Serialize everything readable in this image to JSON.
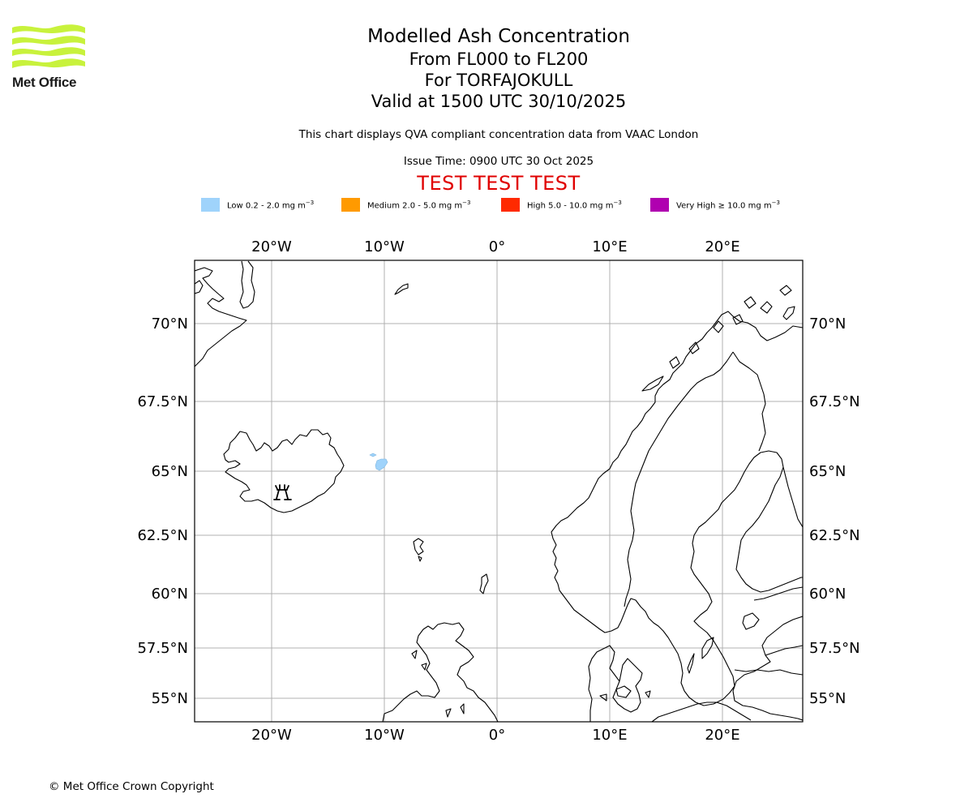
{
  "header": {
    "logo_alt": "Met Office",
    "logo_text": "Met Office",
    "title": "Modelled Ash Concentration",
    "flight_levels": "From FL000 to FL200",
    "volcano": "For TORFAJOKULL",
    "valid_time": "Valid at 1500 UTC 30/10/2025",
    "description": "This chart displays QVA compliant concentration data from VAAC London",
    "issue_time": "Issue Time: 0900 UTC 30 Oct 2025",
    "test_banner": "TEST TEST TEST"
  },
  "legend": [
    {
      "label": "Low 0.2 - 2.0 mg m",
      "sup": "−3",
      "color": "#9fd3fb"
    },
    {
      "label": "Medium 2.0 - 5.0 mg m",
      "sup": "−3",
      "color": "#ff9a00"
    },
    {
      "label": "High 5.0 - 10.0 mg m",
      "sup": "−3",
      "color": "#ff2a00"
    },
    {
      "label": "Very High ≥ 10.0 mg m",
      "sup": "−3",
      "color": "#b000b0"
    }
  ],
  "map": {
    "lon_labels": [
      "20°W",
      "10°W",
      "0°",
      "10°E",
      "20°E"
    ],
    "lat_labels": [
      "70°N",
      "67.5°N",
      "65°N",
      "62.5°N",
      "60°N",
      "57.5°N",
      "55°N"
    ],
    "ash_level": "Low",
    "land_color": "#ffffff",
    "grid_color": "#b0b0b0",
    "vent_icon": "volcano-vent-icon"
  },
  "footer": {
    "copyright": "© Met Office Crown Copyright"
  },
  "colors": {
    "test_banner": "#e00000",
    "logo_lime": "#c8f23c"
  }
}
